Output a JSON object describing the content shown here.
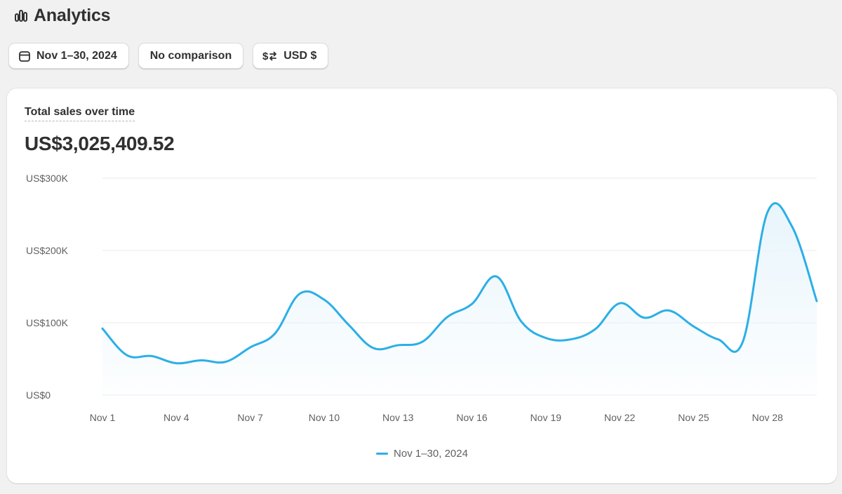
{
  "header": {
    "title": "Analytics",
    "icon": "bar-chart-icon"
  },
  "filters": {
    "date_range": "Nov 1–30, 2024",
    "comparison": "No comparison",
    "currency": "USD $"
  },
  "card": {
    "title": "Total sales over time",
    "total": "US$3,025,409.52"
  },
  "colors": {
    "line": "#2bafe6",
    "fill": "#e8f5fc",
    "grid": "#ebebeb",
    "axis_text": "#616161"
  },
  "chart_data": {
    "type": "area",
    "x": [
      "Nov 1",
      "Nov 2",
      "Nov 3",
      "Nov 4",
      "Nov 5",
      "Nov 6",
      "Nov 7",
      "Nov 8",
      "Nov 9",
      "Nov 10",
      "Nov 11",
      "Nov 12",
      "Nov 13",
      "Nov 14",
      "Nov 15",
      "Nov 16",
      "Nov 17",
      "Nov 18",
      "Nov 19",
      "Nov 20",
      "Nov 21",
      "Nov 22",
      "Nov 23",
      "Nov 24",
      "Nov 25",
      "Nov 26",
      "Nov 27",
      "Nov 28",
      "Nov 29",
      "Nov 30"
    ],
    "xticks": [
      "Nov 1",
      "Nov 4",
      "Nov 7",
      "Nov 10",
      "Nov 13",
      "Nov 16",
      "Nov 19",
      "Nov 22",
      "Nov 25",
      "Nov 28"
    ],
    "yticks": [
      "US$0",
      "US$100K",
      "US$200K",
      "US$300K"
    ],
    "ylim": [
      0,
      300000
    ],
    "series": [
      {
        "name": "Nov 1–30, 2024",
        "values": [
          92000,
          55000,
          54000,
          44000,
          48000,
          46000,
          66000,
          85000,
          140000,
          132000,
          97000,
          65000,
          69000,
          74000,
          108000,
          126000,
          164000,
          102000,
          79000,
          77000,
          91000,
          127000,
          107000,
          117000,
          95000,
          77000,
          74000,
          253000,
          233000,
          130000
        ]
      }
    ],
    "legend": "bottom-center",
    "grid": true
  }
}
